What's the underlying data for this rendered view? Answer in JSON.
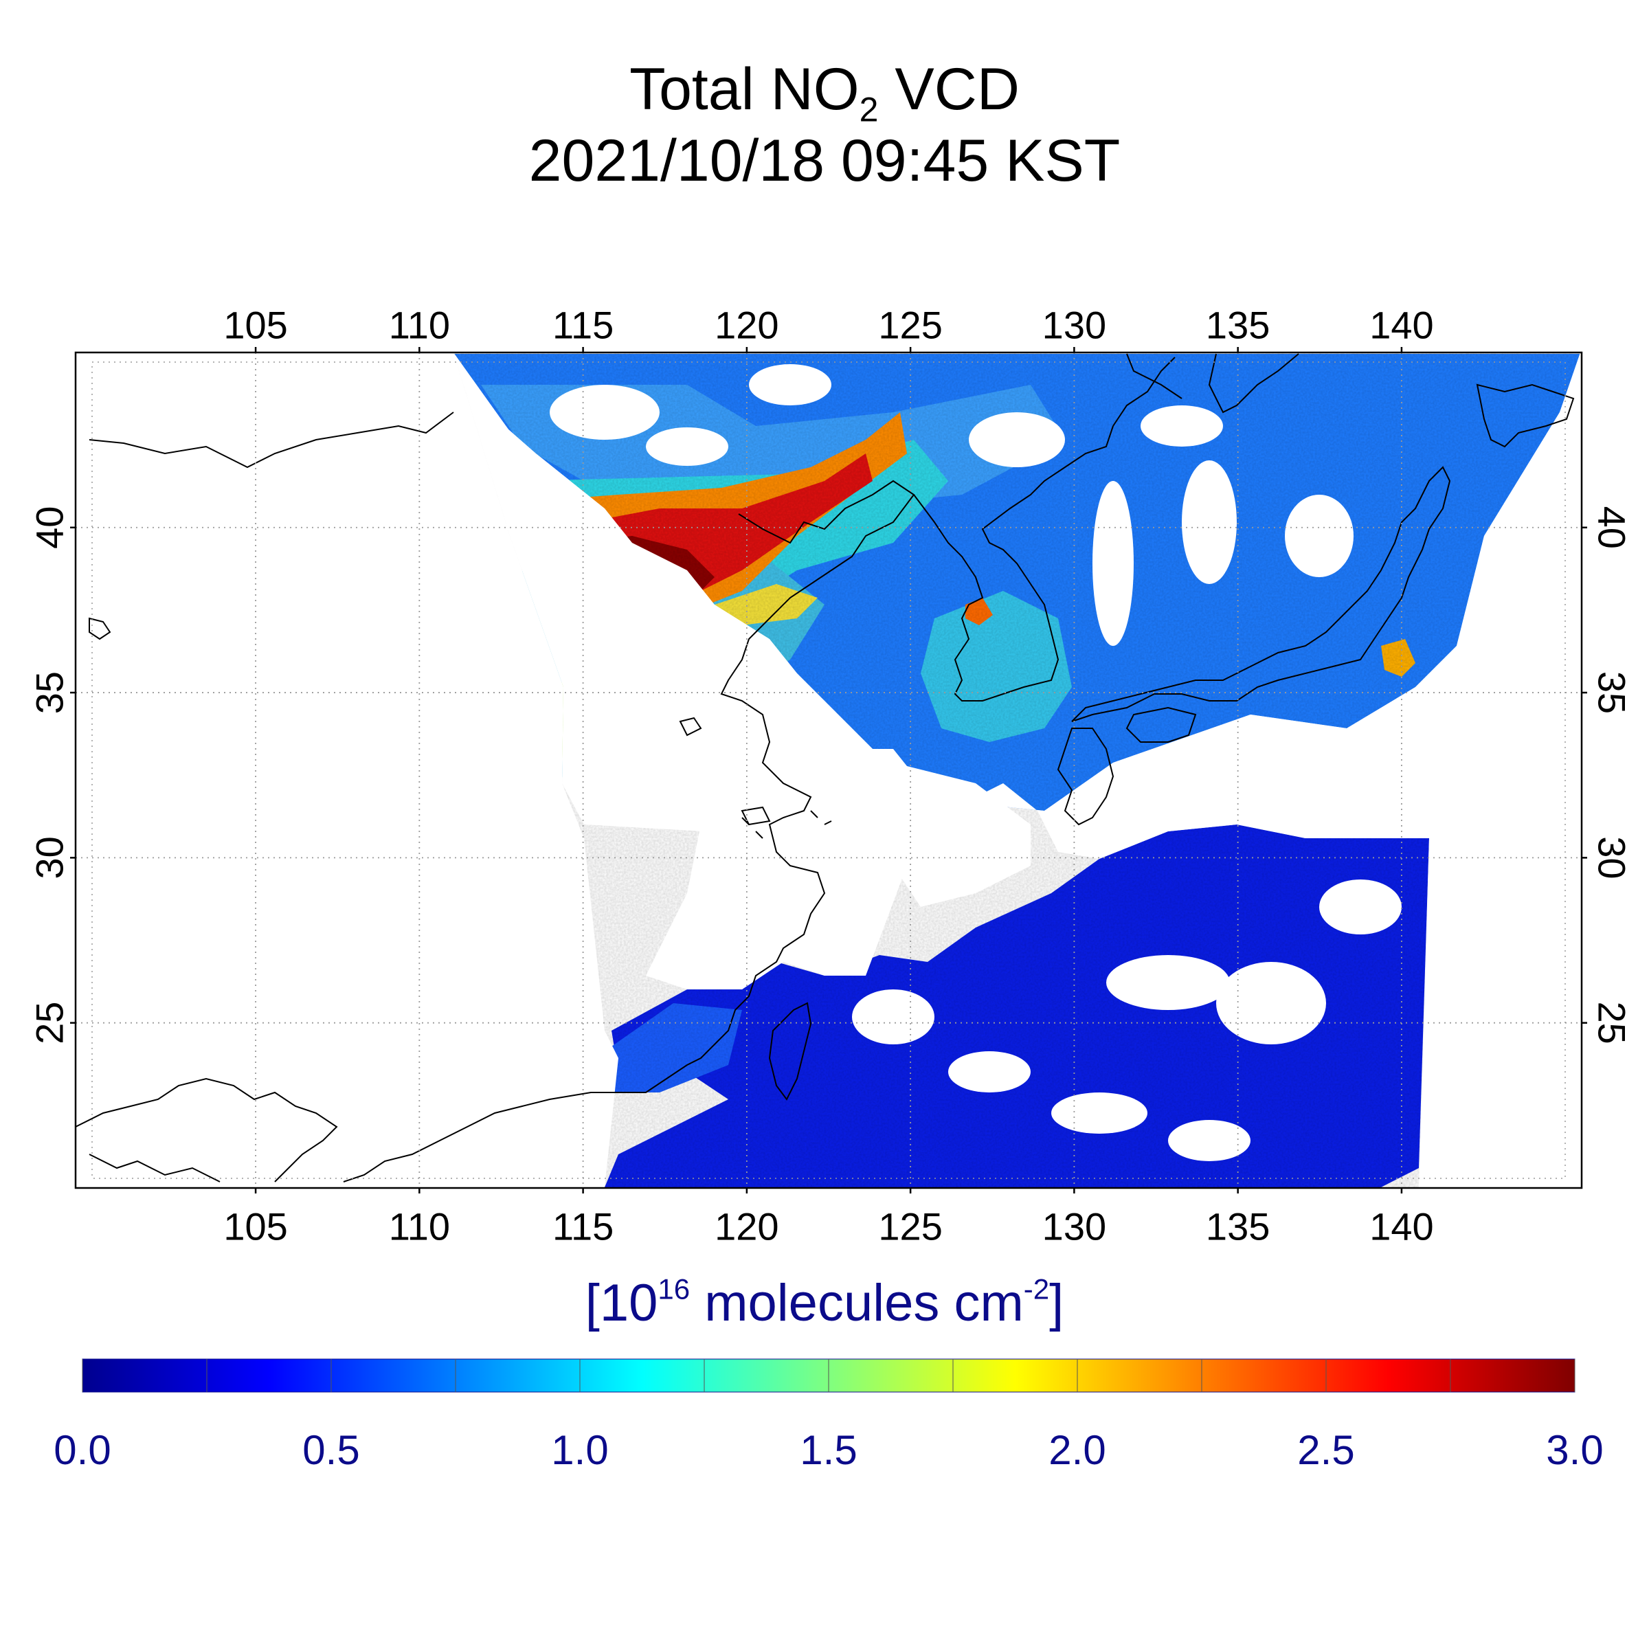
{
  "title": {
    "line1_prefix": "Total NO",
    "line1_sub": "2",
    "line1_suffix": " VCD",
    "line2": "2021/10/18 09:45 KST"
  },
  "map": {
    "lon_range": [
      99.5,
      145.5
    ],
    "lat_range": [
      20,
      45.3
    ],
    "lon_ticks": [
      "105",
      "110",
      "115",
      "120",
      "125",
      "130",
      "135",
      "140"
    ],
    "lat_ticks": [
      "25",
      "30",
      "35",
      "40"
    ],
    "grid": "dotted",
    "colors": {
      "frame": "#000000",
      "grid": "#9a9a9a",
      "coast": "#000000",
      "cloud_gap": "#ffffff"
    }
  },
  "colorbar": {
    "label_prefix": "[10",
    "label_exp1": "16",
    "label_mid": " molecules cm",
    "label_exp2": "-2",
    "label_suffix": "]",
    "min": 0.0,
    "max": 3.0,
    "colormap": "jet",
    "tick_labels": [
      "0.0",
      "0.5",
      "1.0",
      "1.5",
      "2.0",
      "2.5",
      "3.0"
    ],
    "colors": {
      "label": "#0b0b8a",
      "low": "#00008f",
      "mid": "#00ffff",
      "high": "#800000"
    }
  }
}
